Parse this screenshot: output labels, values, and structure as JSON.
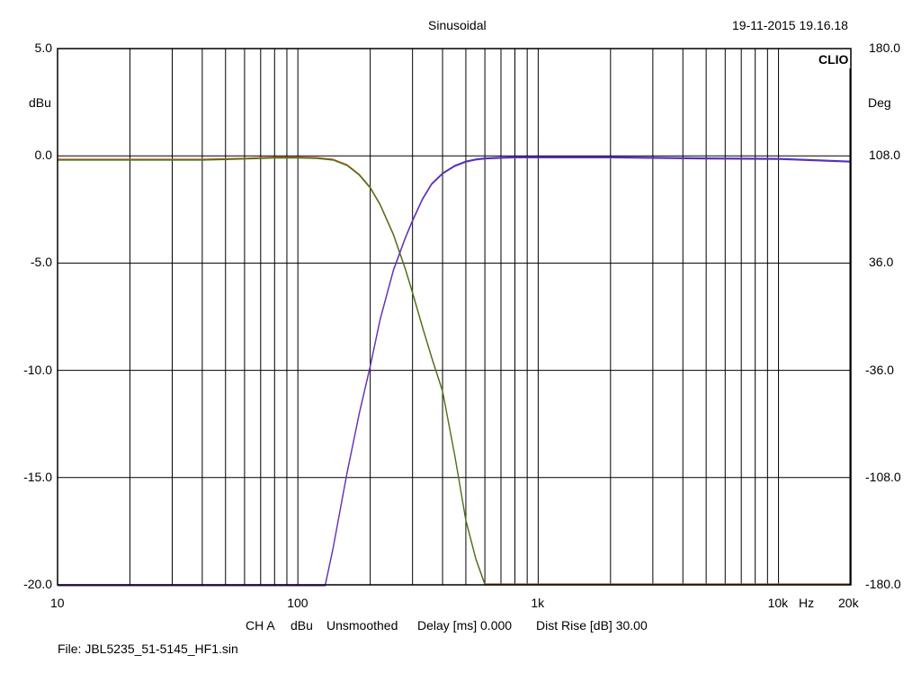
{
  "header": {
    "title": "Sinusoidal",
    "timestamp": "19-11-2015 19.16.18",
    "brand": "CLIO"
  },
  "footer": {
    "channel": "CH A",
    "unit": "dBu",
    "smoothing": "Unsmoothed",
    "delay": "Delay [ms] 0.000",
    "dist_rise": "Dist Rise [dB] 30.00",
    "file": "File: JBL5235_51-5145_HF1.sin"
  },
  "chart_data": {
    "type": "line",
    "title": "Sinusoidal",
    "x_scale": "log",
    "xlim": [
      10,
      20000
    ],
    "x_tick_labels": [
      "10",
      "100",
      "1k",
      "10k",
      "20k"
    ],
    "x_unit_label": "Hz",
    "ylabel": "dBu",
    "ylim": [
      -20,
      5
    ],
    "y_tick_labels": [
      "5.0",
      "0.0",
      "-5.0",
      "-10.0",
      "-15.0",
      "-20.0"
    ],
    "y2label": "Deg",
    "y2lim": [
      -180,
      180
    ],
    "y2_tick_labels": [
      "180.0",
      "108.0",
      "36.0",
      "-36.0",
      "-108.0",
      "-180.0"
    ],
    "grid": true,
    "colors": {
      "lowpass": "#3a7a1a",
      "lowpass_alt": "#c05020",
      "highpass": "#7030b0",
      "highpass_alt": "#3030c0"
    },
    "series": [
      {
        "x": [
          10,
          20,
          40,
          60,
          80,
          100,
          120,
          140,
          160,
          180,
          200,
          220,
          250,
          280,
          300,
          330,
          360,
          400,
          450,
          500,
          550,
          600,
          1000,
          20000
        ],
        "y": [
          -0.2,
          -0.2,
          -0.2,
          -0.15,
          -0.1,
          -0.1,
          -0.12,
          -0.2,
          -0.45,
          -0.9,
          -1.5,
          -2.3,
          -3.7,
          -5.3,
          -6.4,
          -8.0,
          -9.4,
          -11.0,
          -14.0,
          -17.0,
          -18.8,
          -20.0,
          -20.0,
          -20.0
        ]
      },
      {
        "x": [
          10,
          130,
          140,
          160,
          180,
          200,
          220,
          250,
          280,
          300,
          330,
          360,
          400,
          450,
          500,
          550,
          600,
          700,
          800,
          1000,
          2000,
          5000,
          10000,
          20000
        ],
        "y": [
          -20.0,
          -20.0,
          -18.3,
          -14.8,
          -12.0,
          -9.8,
          -7.6,
          -5.3,
          -3.8,
          -3.0,
          -2.0,
          -1.3,
          -0.8,
          -0.45,
          -0.25,
          -0.15,
          -0.1,
          -0.07,
          -0.05,
          -0.05,
          -0.05,
          -0.1,
          -0.12,
          -0.25
        ]
      }
    ]
  }
}
